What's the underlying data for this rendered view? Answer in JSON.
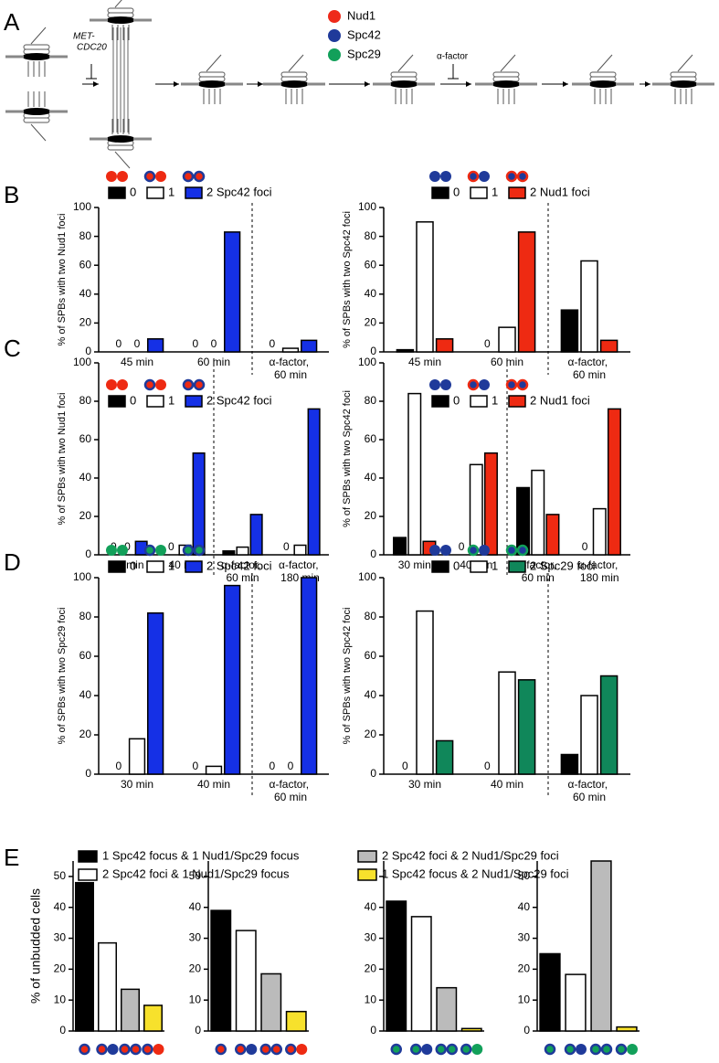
{
  "panel_labels": [
    "A",
    "B",
    "C",
    "D",
    "E"
  ],
  "diagram": {
    "arrest_label": [
      "MET-",
      "CDC20"
    ],
    "factor_label": "α-factor"
  },
  "legend": [
    {
      "label": "Nud1",
      "color": "#ee2a1a"
    },
    {
      "label": "Spc42",
      "color": "#1f3a9a"
    },
    {
      "label": "Spc29",
      "color": "#12a05a"
    }
  ],
  "e_legend": [
    {
      "label": "1 Spc42 focus & 1 Nud1/Spc29 focus",
      "color": "#000000"
    },
    {
      "label": "2 Spc42 foci & 1 Nud1/Spc29 focus",
      "color": "#ffffff"
    },
    {
      "label": "2 Spc42 foci & 2 Nud1/Spc29 foci",
      "color": "#bbbbbb"
    },
    {
      "label": "1 Spc42 focus & 2 Nud1/Spc29 foci",
      "color": "#f7e12c"
    }
  ],
  "chart_data": [
    {
      "type": "bar",
      "ylabel": "% of SPBs with two Nud1 foci",
      "categories": [
        "45 min",
        "60 min",
        "α-factor, 60 min"
      ],
      "ylim": [
        0,
        100
      ],
      "yticks": [
        0,
        20,
        40,
        60,
        80,
        100
      ],
      "series": [
        {
          "name": "0",
          "color": "#000000",
          "values": [
            0,
            0,
            0
          ]
        },
        {
          "name": "1",
          "color": "#ffffff",
          "values": [
            0,
            0,
            2.5
          ]
        },
        {
          "name": "2 Spc42 foci",
          "color": "#1530e6",
          "values": [
            9,
            83,
            8
          ]
        }
      ]
    },
    {
      "type": "bar",
      "ylabel": "% of SPBs with two Spc42 foci",
      "categories": [
        "45 min",
        "60 min",
        "α-factor, 60 min"
      ],
      "ylim": [
        0,
        100
      ],
      "yticks": [
        0,
        20,
        40,
        60,
        80,
        100
      ],
      "series": [
        {
          "name": "0",
          "color": "#000000",
          "values": [
            1.5,
            0,
            29
          ]
        },
        {
          "name": "1",
          "color": "#ffffff",
          "values": [
            90,
            17,
            63
          ]
        },
        {
          "name": "2 Nud1 foci",
          "color": "#ee2a12",
          "values": [
            9,
            83,
            8
          ]
        }
      ]
    },
    {
      "type": "bar",
      "ylabel": "% of SPBs with two Nud1 foci",
      "categories": [
        "30 min",
        "40 min",
        "α-factor, 60 min",
        "α-factor, 180 min"
      ],
      "ylim": [
        0,
        100
      ],
      "yticks": [
        0,
        20,
        40,
        60,
        80,
        100
      ],
      "series": [
        {
          "name": "0",
          "color": "#000000",
          "values": [
            0,
            0,
            2,
            0
          ]
        },
        {
          "name": "1",
          "color": "#ffffff",
          "values": [
            0,
            5,
            4,
            5
          ]
        },
        {
          "name": "2 Spc42 foci",
          "color": "#1530e6",
          "values": [
            7,
            53,
            21,
            76
          ]
        }
      ]
    },
    {
      "type": "bar",
      "ylabel": "% of SPBs with two Spc42 foci",
      "categories": [
        "30 min",
        "40 min",
        "α-factor, 60 min",
        "α-factor, 180 min"
      ],
      "ylim": [
        0,
        100
      ],
      "yticks": [
        0,
        20,
        40,
        60,
        80,
        100
      ],
      "series": [
        {
          "name": "0",
          "color": "#000000",
          "values": [
            9,
            0,
            35,
            0
          ]
        },
        {
          "name": "1",
          "color": "#ffffff",
          "values": [
            84,
            47,
            44,
            24
          ]
        },
        {
          "name": "2 Nud1 foci",
          "color": "#ee2a12",
          "values": [
            7,
            53,
            21,
            76
          ]
        }
      ]
    },
    {
      "type": "bar",
      "ylabel": "% of SPBs with two Spc29 foci",
      "categories": [
        "30 min",
        "40 min",
        "α-factor, 60 min"
      ],
      "ylim": [
        0,
        100
      ],
      "yticks": [
        0,
        20,
        40,
        60,
        80,
        100
      ],
      "series": [
        {
          "name": "0",
          "color": "#000000",
          "values": [
            0,
            0,
            0
          ]
        },
        {
          "name": "1",
          "color": "#ffffff",
          "values": [
            18,
            4,
            0
          ]
        },
        {
          "name": "2 Spc42 foci",
          "color": "#1530e6",
          "values": [
            82,
            96,
            100
          ]
        }
      ]
    },
    {
      "type": "bar",
      "ylabel": "% of SPBs with two Spc42 foci",
      "categories": [
        "30 min",
        "40 min",
        "α-factor, 60 min"
      ],
      "ylim": [
        0,
        100
      ],
      "yticks": [
        0,
        20,
        40,
        60,
        80,
        100
      ],
      "series": [
        {
          "name": "0",
          "color": "#000000",
          "values": [
            0,
            0,
            10
          ]
        },
        {
          "name": "1",
          "color": "#ffffff",
          "values": [
            83,
            52,
            40
          ]
        },
        {
          "name": "2 Spc29 foci",
          "color": "#10875a",
          "values": [
            17,
            48,
            50
          ]
        }
      ]
    },
    {
      "type": "bar",
      "ylabel": "% of unbudded cells",
      "categories": [
        null,
        null,
        null,
        null
      ],
      "values": [
        48,
        28.5,
        13.5,
        8.3
      ],
      "colors": [
        "#000000",
        "#ffffff",
        "#bbbbbb",
        "#f7e12c"
      ],
      "ylim": [
        0,
        55
      ],
      "yticks": [
        0,
        10,
        20,
        30,
        40,
        50
      ]
    },
    {
      "type": "bar",
      "categories": [
        null,
        null,
        null,
        null
      ],
      "values": [
        39,
        32.5,
        18.5,
        6.3
      ],
      "colors": [
        "#000000",
        "#ffffff",
        "#bbbbbb",
        "#f7e12c"
      ],
      "ylim": [
        0,
        55
      ],
      "yticks": [
        0,
        10,
        20,
        30,
        40,
        50
      ]
    },
    {
      "type": "bar",
      "categories": [
        null,
        null,
        null,
        null
      ],
      "values": [
        42,
        37,
        14,
        0.8
      ],
      "colors": [
        "#000000",
        "#ffffff",
        "#bbbbbb",
        "#f7e12c"
      ],
      "ylim": [
        0,
        55
      ],
      "yticks": [
        0,
        10,
        20,
        30,
        40,
        50
      ]
    },
    {
      "type": "bar",
      "categories": [
        null,
        null,
        null,
        null
      ],
      "values": [
        25,
        18.3,
        55,
        1.3
      ],
      "colors": [
        "#000000",
        "#ffffff",
        "#bbbbbb",
        "#f7e12c"
      ],
      "ylim": [
        0,
        55
      ],
      "yticks": [
        0,
        10,
        20,
        30,
        40,
        50
      ]
    }
  ]
}
